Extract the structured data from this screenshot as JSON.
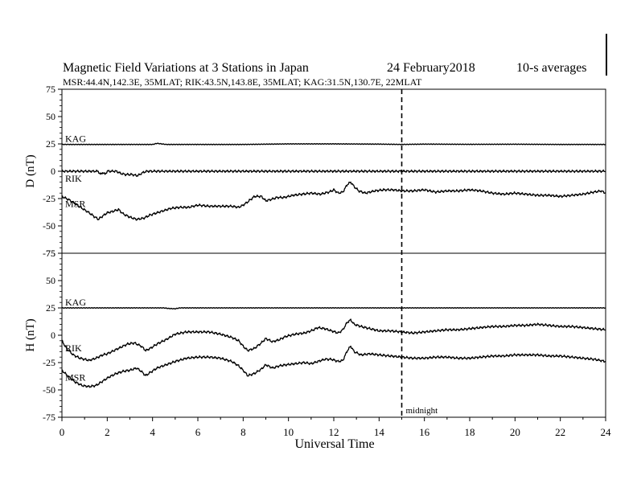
{
  "header": {
    "title": "Magnetic Field Variations at 3 Stations in Japan",
    "date": "24 February2018",
    "averaging": "10-s averages",
    "stations_line": "MSR:44.4N,142.3E, 35MLAT;  RIK:43.5N,143.8E, 35MLAT;  KAG:31.5N,130.7E, 22MLAT"
  },
  "chart_data": {
    "type": "line",
    "xlabel": "Universal Time",
    "xlim": [
      0,
      24
    ],
    "x_ticks": [
      "0",
      "2",
      "4",
      "6",
      "8",
      "10",
      "12",
      "14",
      "16",
      "18",
      "20",
      "22",
      "24"
    ],
    "vline": {
      "x": 15,
      "label": "midnight",
      "style": "dashed"
    },
    "colors": {
      "line": "#000000",
      "background": "#ffffff"
    },
    "panels": [
      {
        "ylabel": "D (nT)",
        "ylim": [
          -75,
          75
        ],
        "y_ticks": [
          "75",
          "50",
          "25",
          "0",
          "-25",
          "-50",
          "-75"
        ],
        "series": [
          {
            "name": "KAG",
            "x": [
              0,
              4.0,
              4.2,
              4.6,
              6,
              8,
              10,
              12,
              14,
              15,
              16,
              18,
              20,
              22,
              24
            ],
            "y": [
              24.5,
              24.5,
              25.5,
              24.5,
              24.5,
              24.5,
              25.0,
              25.0,
              24.8,
              24.5,
              24.8,
              24.6,
              24.7,
              24.5,
              24.5
            ]
          },
          {
            "name": "RIK",
            "x": [
              0,
              1.6,
              1.7,
              1.8,
              1.9,
              2.0,
              2.1,
              2.4,
              2.6,
              2.8,
              3.1,
              3.3,
              3.45,
              3.5,
              3.6,
              3.75,
              3.8,
              24
            ],
            "y": [
              0,
              0,
              -3,
              -1,
              -3,
              0,
              0,
              0,
              -2,
              -3,
              -3,
              -4,
              -3,
              -2,
              -1,
              0,
              0,
              0
            ]
          },
          {
            "name": "MSR",
            "x": [
              0,
              0.3,
              0.6,
              0.9,
              1.2,
              1.6,
              1.8,
              2.0,
              2.2,
              2.5,
              2.7,
              3.0,
              3.3,
              3.6,
              3.9,
              4.2,
              4.5,
              4.8,
              5.2,
              5.6,
              6.0,
              6.5,
              7.0,
              7.5,
              7.8,
              8.0,
              8.2,
              8.5,
              8.8,
              9.0,
              9.2,
              9.5,
              9.8,
              10.2,
              10.6,
              11.0,
              11.4,
              11.8,
              12.0,
              12.2,
              12.4,
              12.6,
              12.75,
              12.9,
              13.1,
              13.4,
              13.8,
              14.2,
              14.6,
              15.0,
              15.5,
              16.0,
              16.5,
              17.0,
              17.5,
              18.0,
              18.5,
              19.0,
              19.5,
              20.0,
              20.5,
              21.0,
              21.5,
              22.0,
              22.5,
              23.0,
              23.5,
              23.8,
              24.0
            ],
            "y": [
              -23,
              -26,
              -30,
              -34,
              -38,
              -44,
              -41,
              -38,
              -37,
              -35,
              -39,
              -42,
              -44,
              -43,
              -40,
              -38,
              -36,
              -34,
              -33,
              -33,
              -31,
              -32,
              -32,
              -32,
              -33,
              -31,
              -28,
              -23,
              -23,
              -27,
              -26,
              -24,
              -24,
              -22,
              -21,
              -20,
              -21,
              -19,
              -17,
              -20,
              -19,
              -12,
              -10,
              -14,
              -18,
              -20,
              -18,
              -17,
              -17,
              -18,
              -18,
              -17,
              -19,
              -18,
              -18,
              -17,
              -18,
              -20,
              -21,
              -20,
              -21,
              -22,
              -22,
              -23,
              -22,
              -21,
              -19,
              -18,
              -20
            ]
          }
        ]
      },
      {
        "ylabel": "H (nT)",
        "ylim": [
          -75,
          75
        ],
        "y_ticks": [
          "75",
          "50",
          "25",
          "0",
          "-25",
          "-50",
          "-75"
        ],
        "series": [
          {
            "name": "KAG",
            "x": [
              0,
              4.5,
              4.7,
              5.0,
              5.2,
              6,
              8,
              10,
              12,
              14,
              16,
              18,
              20,
              22,
              24
            ],
            "y": [
              25,
              25,
              24.5,
              24.2,
              25,
              25,
              25,
              25,
              25,
              25,
              25,
              25,
              25,
              25,
              25
            ]
          },
          {
            "name": "RIK",
            "x": [
              0,
              0.2,
              0.5,
              0.8,
              1.0,
              1.2,
              1.5,
              1.8,
              2.0,
              2.3,
              2.6,
              2.9,
              3.2,
              3.5,
              3.7,
              3.9,
              4.2,
              4.6,
              5.0,
              5.5,
              6.0,
              6.5,
              7.0,
              7.5,
              7.8,
              8.0,
              8.2,
              8.5,
              8.8,
              9.0,
              9.3,
              9.6,
              9.9,
              10.3,
              10.7,
              11.0,
              11.3,
              11.6,
              11.9,
              12.2,
              12.4,
              12.6,
              12.75,
              12.9,
              13.2,
              13.6,
              14.0,
              14.5,
              15.0,
              15.5,
              16.0,
              16.5,
              17.0,
              17.5,
              18.0,
              18.5,
              19.0,
              19.5,
              20.0,
              20.5,
              21.0,
              21.5,
              22.0,
              22.5,
              23.0,
              23.5,
              24.0
            ],
            "y": [
              -5,
              -12,
              -18,
              -21,
              -22,
              -23,
              -21,
              -18,
              -17,
              -14,
              -11,
              -8,
              -7,
              -10,
              -14,
              -12,
              -8,
              -4,
              1,
              3,
              3,
              3,
              1,
              -2,
              -5,
              -10,
              -14,
              -12,
              -7,
              -3,
              -6,
              -4,
              -1,
              1,
              2,
              4,
              7,
              6,
              4,
              2,
              5,
              12,
              14,
              10,
              8,
              6,
              4,
              4,
              3,
              2,
              3,
              4,
              5,
              5,
              6,
              7,
              8,
              8,
              9,
              9,
              10,
              9,
              8,
              8,
              7,
              6,
              5
            ]
          },
          {
            "name": "MSR",
            "x": [
              0,
              0.3,
              0.6,
              0.9,
              1.2,
              1.5,
              1.8,
              2.1,
              2.4,
              2.7,
              3.0,
              3.3,
              3.5,
              3.7,
              3.9,
              4.2,
              4.6,
              5.0,
              5.5,
              6.0,
              6.5,
              7.0,
              7.5,
              7.8,
              8.0,
              8.2,
              8.5,
              8.8,
              9.0,
              9.3,
              9.6,
              9.9,
              10.3,
              10.7,
              11.0,
              11.3,
              11.6,
              11.9,
              12.2,
              12.4,
              12.6,
              12.75,
              12.9,
              13.2,
              13.6,
              14.0,
              14.5,
              15.0,
              15.5,
              16.0,
              16.5,
              17.0,
              17.5,
              18.0,
              18.5,
              19.0,
              19.5,
              20.0,
              20.5,
              21.0,
              21.5,
              22.0,
              22.5,
              23.0,
              23.5,
              24.0
            ],
            "y": [
              -32,
              -38,
              -43,
              -46,
              -47,
              -46,
              -42,
              -38,
              -35,
              -33,
              -32,
              -30,
              -33,
              -37,
              -34,
              -30,
              -27,
              -24,
              -21,
              -20,
              -20,
              -21,
              -24,
              -28,
              -32,
              -37,
              -35,
              -31,
              -27,
              -30,
              -28,
              -27,
              -26,
              -25,
              -26,
              -24,
              -22,
              -22,
              -24,
              -23,
              -14,
              -10,
              -15,
              -18,
              -17,
              -18,
              -19,
              -20,
              -21,
              -21,
              -20,
              -20,
              -21,
              -21,
              -20,
              -19,
              -19,
              -18,
              -18,
              -18,
              -19,
              -19,
              -20,
              -21,
              -22,
              -24
            ]
          }
        ]
      }
    ]
  }
}
